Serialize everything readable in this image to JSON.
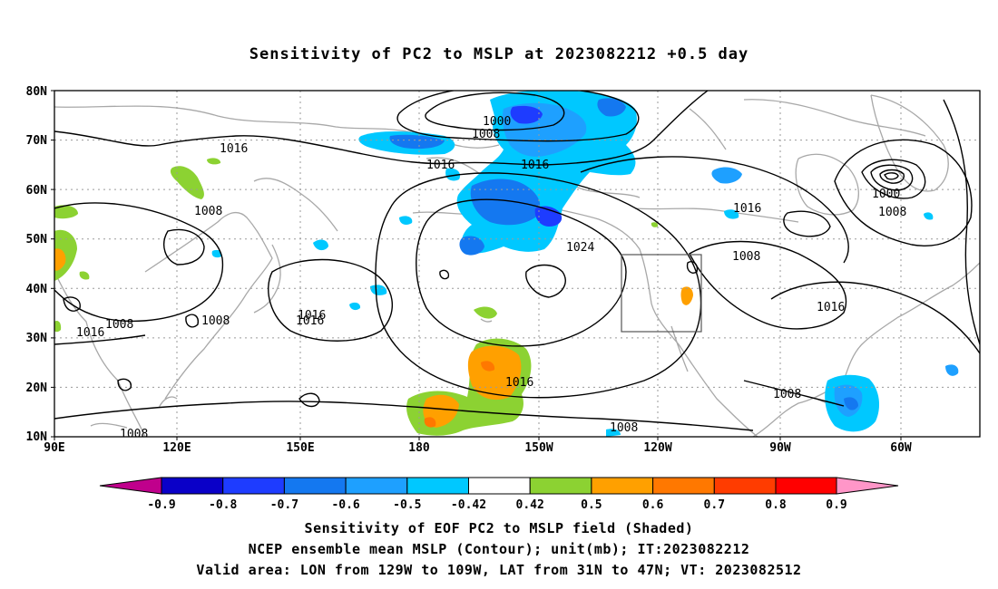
{
  "title": "Sensitivity of PC2 to MSLP at 2023082212 +0.5 day",
  "captions": {
    "line1": "Sensitivity of EOF PC2 to MSLP field (Shaded)",
    "line2": "NCEP ensemble mean MSLP (Contour); unit(mb); IT:2023082212",
    "line3": "Valid area: LON from 129W to 109W, LAT from 31N to 47N; VT: 2023082512"
  },
  "map": {
    "lat_ticks": [
      "80N",
      "70N",
      "60N",
      "50N",
      "40N",
      "30N",
      "20N",
      "10N"
    ],
    "lon_ticks": [
      "90E",
      "120E",
      "150E",
      "180",
      "150W",
      "120W",
      "90W",
      "60W"
    ],
    "contour_labels": [
      {
        "text": "1000"
      },
      {
        "text": "1008"
      },
      {
        "text": "1016"
      },
      {
        "text": "1016"
      },
      {
        "text": "1016"
      },
      {
        "text": "1016"
      },
      {
        "text": "1008"
      },
      {
        "text": "1008"
      },
      {
        "text": "1016"
      },
      {
        "text": "1008"
      },
      {
        "text": "1016"
      },
      {
        "text": "1016"
      },
      {
        "text": "1024"
      },
      {
        "text": "1016"
      },
      {
        "text": "1008"
      },
      {
        "text": "1008"
      },
      {
        "text": "1016"
      },
      {
        "text": "1008"
      },
      {
        "text": "1000"
      },
      {
        "text": "1008"
      },
      {
        "text": "1016"
      },
      {
        "text": "1008"
      }
    ],
    "valid_area": {
      "lon_min": "129W",
      "lon_max": "109W",
      "lat_min": "31N",
      "lat_max": "47N"
    }
  },
  "colorbar": {
    "labels": [
      "-0.9",
      "-0.8",
      "-0.7",
      "-0.6",
      "-0.5",
      "-0.42",
      "0.42",
      "0.5",
      "0.6",
      "0.7",
      "0.8",
      "0.9"
    ],
    "colors": [
      "#c0008c",
      "#0a00c8",
      "#1e3cff",
      "#1478f0",
      "#1ea0ff",
      "#00c8ff",
      "#ffffff",
      "#8cd232",
      "#ffa000",
      "#ff7800",
      "#ff3c00",
      "#ff0000",
      "#ff96c8"
    ]
  },
  "shade_colors": {
    "light_blue": "#00c8ff",
    "mid_blue": "#1ea0ff",
    "blue": "#1478f0",
    "deep_blue": "#1e3cff",
    "green": "#8cd232",
    "orange": "#ffa000",
    "dark_orange": "#ff7800",
    "red_orange": "#ff3c00"
  }
}
